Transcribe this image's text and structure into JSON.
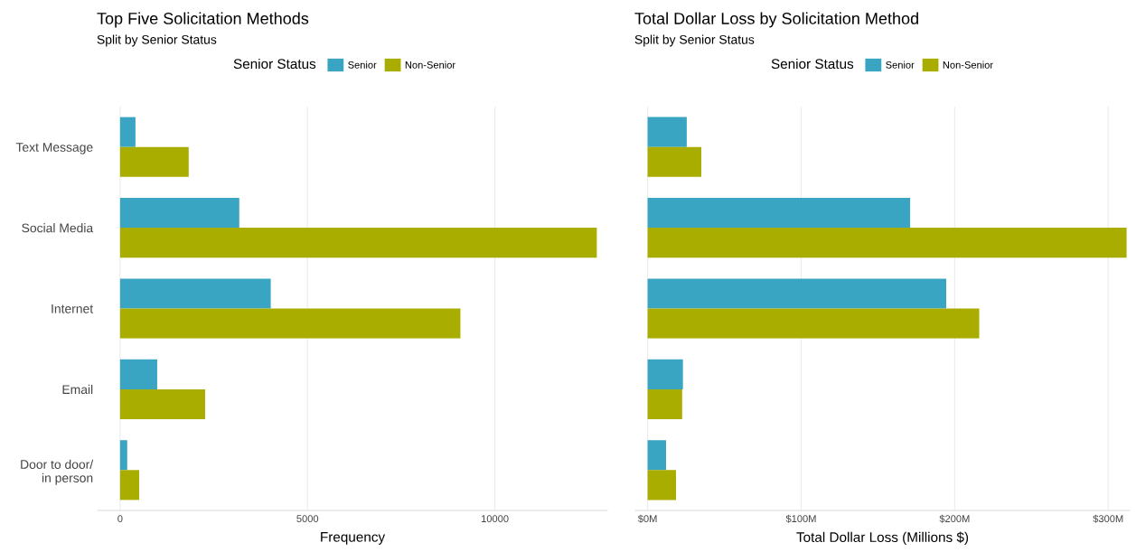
{
  "chart_data": [
    {
      "type": "bar",
      "orientation": "horizontal",
      "title": "Top Five Solicitation Methods",
      "subtitle": "Split by Senior Status",
      "xlabel": "Frequency",
      "legend_title": "Senior Status",
      "categories": [
        "Text Message",
        "Social Media",
        "Internet",
        "Email",
        "Door to door/\nin person"
      ],
      "series": [
        {
          "name": "Senior",
          "color": "#3aa5c2",
          "values": [
            410,
            3180,
            4020,
            990,
            190
          ]
        },
        {
          "name": "Non-Senior",
          "color": "#a8ad00",
          "values": [
            1830,
            12720,
            9080,
            2270,
            510
          ]
        }
      ],
      "xlim": [
        -600,
        13000
      ],
      "xticks": [
        0,
        5000,
        10000
      ],
      "grid": "x",
      "legend": "top"
    },
    {
      "type": "bar",
      "orientation": "horizontal",
      "title": "Total Dollar Loss by Solicitation Method",
      "subtitle": "Split by Senior Status",
      "xlabel": "Total Dollar Loss (Millions $)",
      "legend_title": "Senior Status",
      "categories": [
        null,
        null,
        null,
        null,
        null
      ],
      "series": [
        {
          "name": "Senior",
          "color": "#3aa5c2",
          "values": [
            25.5,
            171,
            194.5,
            23,
            12
          ]
        },
        {
          "name": "Non-Senior",
          "color": "#a8ad00",
          "values": [
            35,
            312,
            216,
            22.5,
            18.5
          ]
        }
      ],
      "xlim": [
        -8,
        314
      ],
      "xticks": [
        {
          "value": 0,
          "label": "$0M"
        },
        {
          "value": 100,
          "label": "$100M"
        },
        {
          "value": 200,
          "label": "$200M"
        },
        {
          "value": 300,
          "label": "$300M"
        }
      ],
      "grid": "x",
      "legend": "top",
      "tick_labels": "x"
    }
  ]
}
